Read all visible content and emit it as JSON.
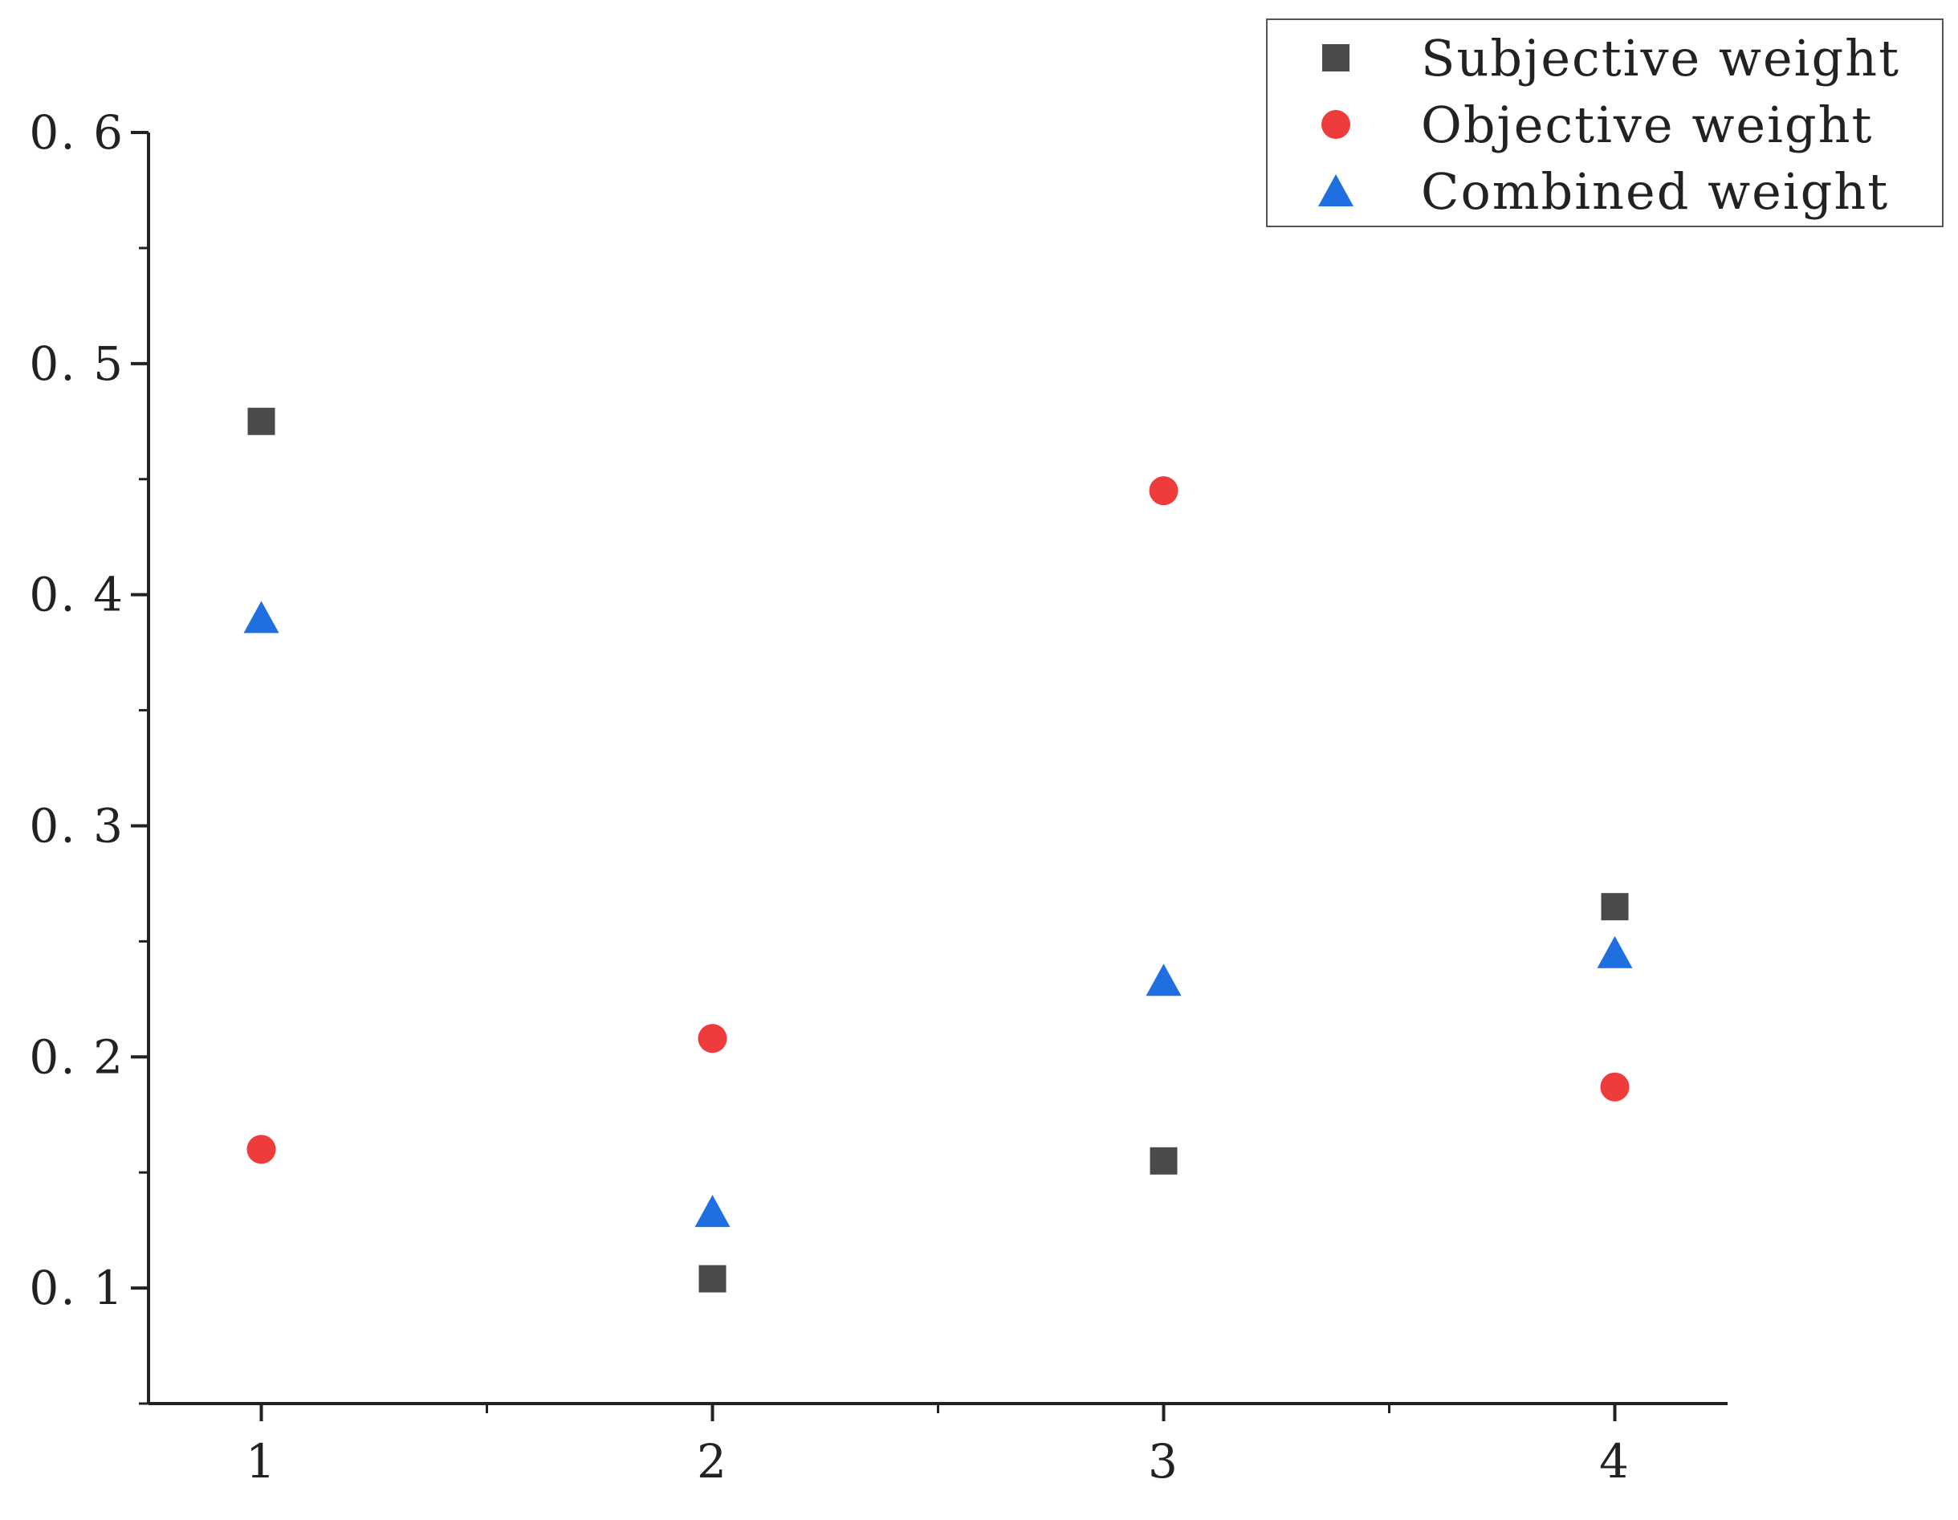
{
  "chart_data": {
    "type": "scatter",
    "categories": [
      "1",
      "2",
      "3",
      "4"
    ],
    "x": [
      1,
      2,
      3,
      4
    ],
    "xlim": [
      0.75,
      4.25
    ],
    "ylim": [
      0.05,
      0.6
    ],
    "yticks": [
      0.1,
      0.2,
      0.3,
      0.4,
      0.5,
      0.6
    ],
    "ytick_labels": [
      "0. 1",
      "0. 2",
      "0. 3",
      "0. 4",
      "0. 5",
      "0. 6"
    ],
    "xtick_labels": [
      "1",
      "2",
      "3",
      "4"
    ],
    "title": "",
    "xlabel": "",
    "ylabel": "",
    "grid": false,
    "legend_position": "top-right",
    "series": [
      {
        "name": "Subjective weight",
        "marker": "square",
        "color": "#4a4a4a",
        "values": [
          0.475,
          0.104,
          0.155,
          0.265
        ]
      },
      {
        "name": "Objective weight",
        "marker": "circle",
        "color": "#ee3b3b",
        "values": [
          0.16,
          0.208,
          0.445,
          0.187
        ]
      },
      {
        "name": "Combined weight",
        "marker": "triangle",
        "color": "#1f6fe0",
        "values": [
          0.39,
          0.133,
          0.233,
          0.245
        ]
      }
    ]
  }
}
